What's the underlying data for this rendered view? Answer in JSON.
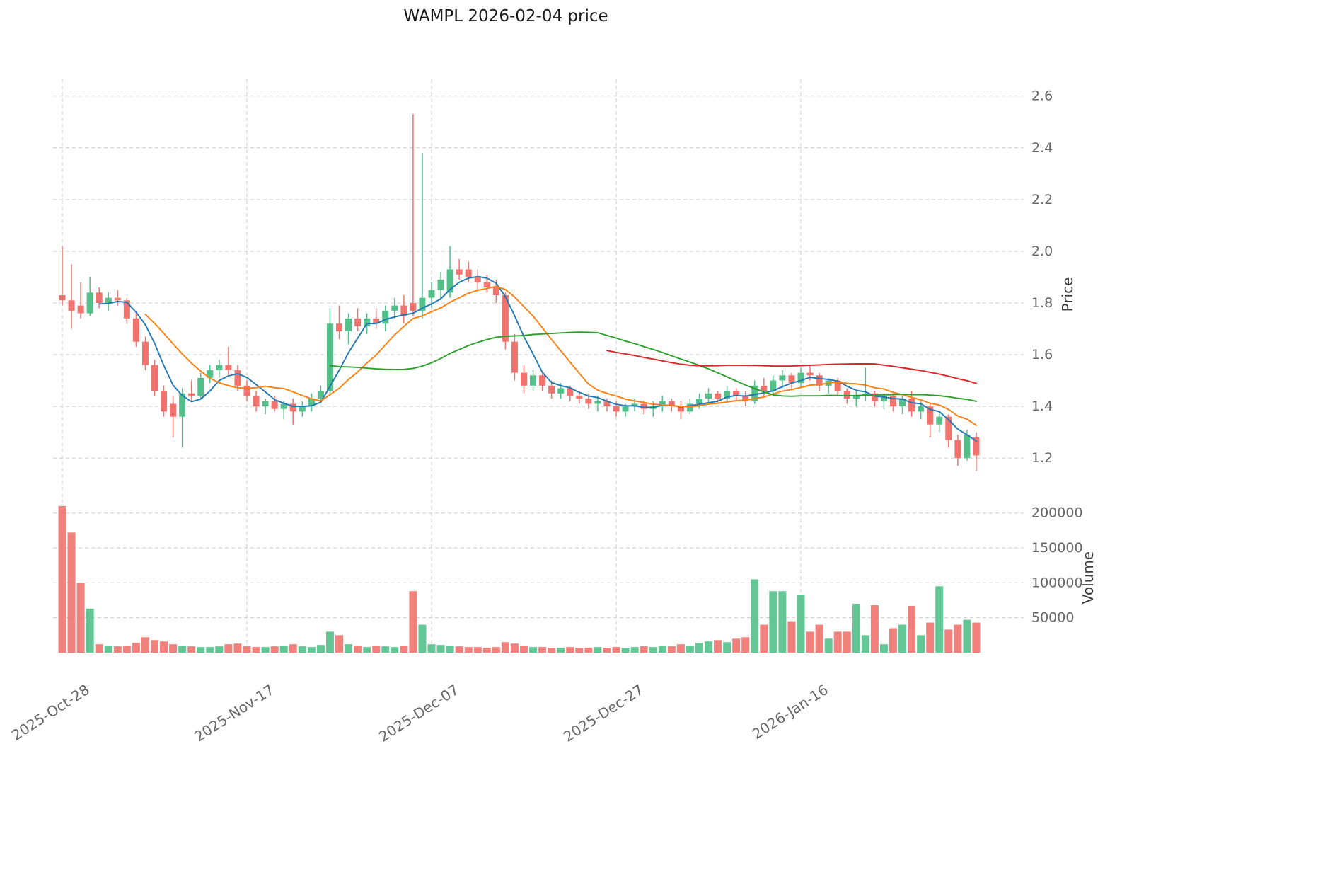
{
  "title": "WAMPL  2026-02-04  price",
  "symbol": "WAMPL",
  "as_of_date": "2026-02-04",
  "axes": {
    "price_label": "Price",
    "volume_label": "Volume",
    "price_ticks": [
      1.2,
      1.4,
      1.6,
      1.8,
      2.0,
      2.2,
      2.4,
      2.6
    ],
    "volume_ticks": [
      50000,
      100000,
      150000,
      200000
    ],
    "x_ticks": [
      {
        "label": "2025-Oct-28",
        "index": 0
      },
      {
        "label": "2025-Nov-17",
        "index": 20
      },
      {
        "label": "2025-Dec-07",
        "index": 40
      },
      {
        "label": "2025-Dec-27",
        "index": 60
      },
      {
        "label": "2026-Jan-16",
        "index": 80
      }
    ]
  },
  "style": {
    "up_color": "#53c08a",
    "down_color": "#f0736e",
    "grid_color": "#cdcdcd",
    "tick_text_color": "#666666",
    "title_color": "#1a1a1a"
  },
  "chart_data": {
    "type": "candlestick",
    "title": "WAMPL  2026-02-04  price",
    "ylabel": "Price",
    "ylabel_lower": "Volume",
    "grid": "dashed",
    "legend": "none",
    "price_ylim": [
      1.11,
      2.665
    ],
    "volume_ylim": [
      0,
      220000
    ],
    "moving_averages": [
      {
        "name": "mav-5",
        "window": 5,
        "color": "#1f77b4"
      },
      {
        "name": "mav-10",
        "window": 10,
        "color": "#ff7f0e"
      },
      {
        "name": "mav-30",
        "window": 30,
        "color": "#2ca02c"
      },
      {
        "name": "mav-60",
        "window": 60,
        "color": "#d62728"
      }
    ],
    "columns": [
      "date",
      "open",
      "high",
      "low",
      "close",
      "volume"
    ],
    "rows": [
      [
        "2025-10-28",
        1.83,
        2.02,
        1.79,
        1.81,
        210000
      ],
      [
        "2025-10-29",
        1.81,
        1.95,
        1.7,
        1.77,
        172000
      ],
      [
        "2025-10-30",
        1.79,
        1.88,
        1.74,
        1.76,
        100000
      ],
      [
        "2025-10-31",
        1.76,
        1.9,
        1.75,
        1.84,
        63000
      ],
      [
        "2025-11-01",
        1.84,
        1.86,
        1.78,
        1.8,
        12000
      ],
      [
        "2025-11-02",
        1.8,
        1.84,
        1.77,
        1.82,
        10000
      ],
      [
        "2025-11-03",
        1.82,
        1.85,
        1.79,
        1.81,
        9000
      ],
      [
        "2025-11-04",
        1.81,
        1.82,
        1.72,
        1.74,
        10000
      ],
      [
        "2025-11-05",
        1.74,
        1.76,
        1.63,
        1.65,
        14000
      ],
      [
        "2025-11-06",
        1.65,
        1.67,
        1.54,
        1.56,
        22000
      ],
      [
        "2025-11-07",
        1.56,
        1.58,
        1.44,
        1.46,
        18000
      ],
      [
        "2025-11-08",
        1.46,
        1.48,
        1.36,
        1.38,
        16000
      ],
      [
        "2025-11-09",
        1.41,
        1.44,
        1.28,
        1.36,
        12000
      ],
      [
        "2025-11-10",
        1.36,
        1.47,
        1.24,
        1.45,
        10000
      ],
      [
        "2025-11-11",
        1.45,
        1.5,
        1.42,
        1.44,
        9000
      ],
      [
        "2025-11-12",
        1.44,
        1.53,
        1.43,
        1.51,
        8000
      ],
      [
        "2025-11-13",
        1.51,
        1.56,
        1.49,
        1.54,
        8000
      ],
      [
        "2025-11-14",
        1.54,
        1.58,
        1.51,
        1.56,
        9000
      ],
      [
        "2025-11-15",
        1.56,
        1.63,
        1.52,
        1.54,
        12000
      ],
      [
        "2025-11-16",
        1.54,
        1.56,
        1.46,
        1.48,
        13000
      ],
      [
        "2025-11-17",
        1.48,
        1.5,
        1.42,
        1.44,
        9000
      ],
      [
        "2025-11-18",
        1.44,
        1.46,
        1.38,
        1.4,
        8000
      ],
      [
        "2025-11-19",
        1.4,
        1.43,
        1.37,
        1.42,
        8000
      ],
      [
        "2025-11-20",
        1.42,
        1.44,
        1.38,
        1.39,
        9000
      ],
      [
        "2025-11-21",
        1.39,
        1.42,
        1.35,
        1.41,
        10000
      ],
      [
        "2025-11-22",
        1.41,
        1.43,
        1.33,
        1.38,
        12000
      ],
      [
        "2025-11-23",
        1.38,
        1.42,
        1.36,
        1.4,
        9000
      ],
      [
        "2025-11-24",
        1.4,
        1.45,
        1.38,
        1.43,
        8000
      ],
      [
        "2025-11-25",
        1.43,
        1.48,
        1.41,
        1.46,
        11000
      ],
      [
        "2025-11-26",
        1.46,
        1.78,
        1.45,
        1.72,
        30000
      ],
      [
        "2025-11-27",
        1.72,
        1.79,
        1.66,
        1.69,
        25000
      ],
      [
        "2025-11-28",
        1.69,
        1.76,
        1.64,
        1.74,
        12000
      ],
      [
        "2025-11-29",
        1.74,
        1.78,
        1.69,
        1.71,
        10000
      ],
      [
        "2025-11-30",
        1.71,
        1.76,
        1.68,
        1.74,
        8000
      ],
      [
        "2025-12-01",
        1.74,
        1.78,
        1.7,
        1.72,
        10000
      ],
      [
        "2025-12-02",
        1.72,
        1.79,
        1.69,
        1.77,
        9000
      ],
      [
        "2025-12-03",
        1.77,
        1.82,
        1.74,
        1.79,
        8000
      ],
      [
        "2025-12-04",
        1.79,
        1.83,
        1.72,
        1.75,
        10000
      ],
      [
        "2025-12-05",
        1.8,
        2.53,
        1.75,
        1.77,
        88000
      ],
      [
        "2025-12-06",
        1.77,
        2.38,
        1.74,
        1.82,
        40000
      ],
      [
        "2025-12-07",
        1.82,
        1.88,
        1.78,
        1.85,
        12000
      ],
      [
        "2025-12-08",
        1.85,
        1.92,
        1.81,
        1.89,
        11000
      ],
      [
        "2025-12-09",
        1.84,
        2.02,
        1.82,
        1.93,
        10000
      ],
      [
        "2025-12-10",
        1.93,
        1.97,
        1.89,
        1.91,
        9000
      ],
      [
        "2025-12-11",
        1.93,
        1.96,
        1.88,
        1.9,
        8000
      ],
      [
        "2025-12-12",
        1.9,
        1.93,
        1.85,
        1.88,
        8000
      ],
      [
        "2025-12-13",
        1.88,
        1.91,
        1.84,
        1.86,
        7000
      ],
      [
        "2025-12-14",
        1.86,
        1.89,
        1.8,
        1.83,
        8000
      ],
      [
        "2025-12-15",
        1.83,
        1.84,
        1.62,
        1.65,
        15000
      ],
      [
        "2025-12-16",
        1.65,
        1.68,
        1.5,
        1.53,
        13000
      ],
      [
        "2025-12-17",
        1.53,
        1.56,
        1.45,
        1.48,
        10000
      ],
      [
        "2025-12-18",
        1.48,
        1.54,
        1.46,
        1.52,
        8000
      ],
      [
        "2025-12-19",
        1.52,
        1.53,
        1.46,
        1.48,
        8000
      ],
      [
        "2025-12-20",
        1.48,
        1.5,
        1.43,
        1.45,
        7000
      ],
      [
        "2025-12-21",
        1.45,
        1.49,
        1.43,
        1.47,
        7000
      ],
      [
        "2025-12-22",
        1.47,
        1.48,
        1.42,
        1.44,
        8000
      ],
      [
        "2025-12-23",
        1.44,
        1.46,
        1.41,
        1.43,
        7000
      ],
      [
        "2025-12-24",
        1.43,
        1.45,
        1.39,
        1.41,
        7000
      ],
      [
        "2025-12-25",
        1.41,
        1.44,
        1.38,
        1.42,
        8000
      ],
      [
        "2025-12-26",
        1.42,
        1.43,
        1.38,
        1.4,
        7000
      ],
      [
        "2025-12-27",
        1.4,
        1.42,
        1.36,
        1.38,
        8000
      ],
      [
        "2025-12-28",
        1.38,
        1.41,
        1.36,
        1.4,
        7000
      ],
      [
        "2025-12-29",
        1.4,
        1.43,
        1.38,
        1.41,
        8000
      ],
      [
        "2025-12-30",
        1.41,
        1.42,
        1.37,
        1.39,
        9000
      ],
      [
        "2025-12-31",
        1.39,
        1.42,
        1.36,
        1.4,
        8000
      ],
      [
        "2026-01-01",
        1.4,
        1.44,
        1.38,
        1.42,
        10000
      ],
      [
        "2026-01-02",
        1.42,
        1.43,
        1.38,
        1.4,
        9000
      ],
      [
        "2026-01-03",
        1.4,
        1.42,
        1.35,
        1.38,
        12000
      ],
      [
        "2026-01-04",
        1.38,
        1.43,
        1.37,
        1.41,
        10000
      ],
      [
        "2026-01-05",
        1.41,
        1.45,
        1.39,
        1.43,
        14000
      ],
      [
        "2026-01-06",
        1.43,
        1.47,
        1.41,
        1.45,
        16000
      ],
      [
        "2026-01-07",
        1.45,
        1.46,
        1.41,
        1.43,
        18000
      ],
      [
        "2026-01-08",
        1.43,
        1.48,
        1.42,
        1.46,
        15000
      ],
      [
        "2026-01-09",
        1.46,
        1.47,
        1.42,
        1.44,
        20000
      ],
      [
        "2026-01-10",
        1.44,
        1.46,
        1.4,
        1.42,
        22000
      ],
      [
        "2026-01-11",
        1.42,
        1.5,
        1.41,
        1.48,
        105000
      ],
      [
        "2026-01-12",
        1.48,
        1.51,
        1.44,
        1.46,
        40000
      ],
      [
        "2026-01-13",
        1.46,
        1.52,
        1.44,
        1.5,
        88000
      ],
      [
        "2026-01-14",
        1.5,
        1.54,
        1.47,
        1.52,
        88000
      ],
      [
        "2026-01-15",
        1.52,
        1.53,
        1.47,
        1.49,
        45000
      ],
      [
        "2026-01-16",
        1.49,
        1.55,
        1.47,
        1.53,
        83000
      ],
      [
        "2026-01-17",
        1.53,
        1.56,
        1.5,
        1.52,
        30000
      ],
      [
        "2026-01-18",
        1.52,
        1.53,
        1.46,
        1.48,
        40000
      ],
      [
        "2026-01-19",
        1.48,
        1.51,
        1.45,
        1.5,
        20000
      ],
      [
        "2026-01-20",
        1.5,
        1.51,
        1.44,
        1.46,
        30000
      ],
      [
        "2026-01-21",
        1.46,
        1.47,
        1.41,
        1.43,
        30000
      ],
      [
        "2026-01-22",
        1.43,
        1.46,
        1.4,
        1.44,
        70000
      ],
      [
        "2026-01-23",
        1.44,
        1.55,
        1.42,
        1.45,
        25000
      ],
      [
        "2026-01-24",
        1.45,
        1.46,
        1.4,
        1.42,
        68000
      ],
      [
        "2026-01-25",
        1.42,
        1.45,
        1.39,
        1.44,
        12000
      ],
      [
        "2026-01-26",
        1.44,
        1.45,
        1.38,
        1.4,
        35000
      ],
      [
        "2026-01-27",
        1.4,
        1.44,
        1.37,
        1.43,
        40000
      ],
      [
        "2026-01-28",
        1.43,
        1.46,
        1.36,
        1.38,
        67000
      ],
      [
        "2026-01-29",
        1.38,
        1.42,
        1.35,
        1.4,
        25000
      ],
      [
        "2026-01-30",
        1.4,
        1.41,
        1.28,
        1.33,
        43000
      ],
      [
        "2026-01-31",
        1.33,
        1.38,
        1.3,
        1.36,
        95000
      ],
      [
        "2026-02-01",
        1.36,
        1.37,
        1.24,
        1.27,
        33000
      ],
      [
        "2026-02-02",
        1.27,
        1.29,
        1.17,
        1.2,
        40000
      ],
      [
        "2026-02-03",
        1.2,
        1.31,
        1.19,
        1.29,
        47000
      ],
      [
        "2026-02-04",
        1.28,
        1.3,
        1.15,
        1.21,
        43000
      ]
    ]
  }
}
